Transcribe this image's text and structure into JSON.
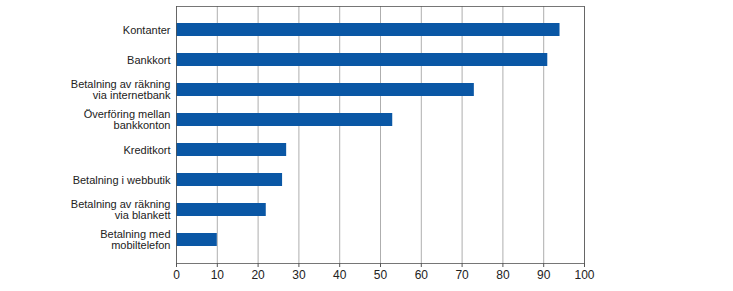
{
  "chart_data": {
    "type": "bar",
    "orientation": "horizontal",
    "categories": [
      "Kontanter",
      "Bankkort",
      "Betalning av räkning\nvia internetbank",
      "Överföring mellan\nbankkonton",
      "Kreditkort",
      "Betalning i webbutik",
      "Betalning av räkning\nvia blankett",
      "Betalning med\nmobiltelefon"
    ],
    "values": [
      94,
      91,
      73,
      53,
      27,
      26,
      22,
      10
    ],
    "color": "#0a57a5",
    "xlim": [
      0,
      100
    ],
    "xticks": [
      0,
      10,
      20,
      30,
      40,
      50,
      60,
      70,
      80,
      90,
      100
    ],
    "grid": true
  }
}
